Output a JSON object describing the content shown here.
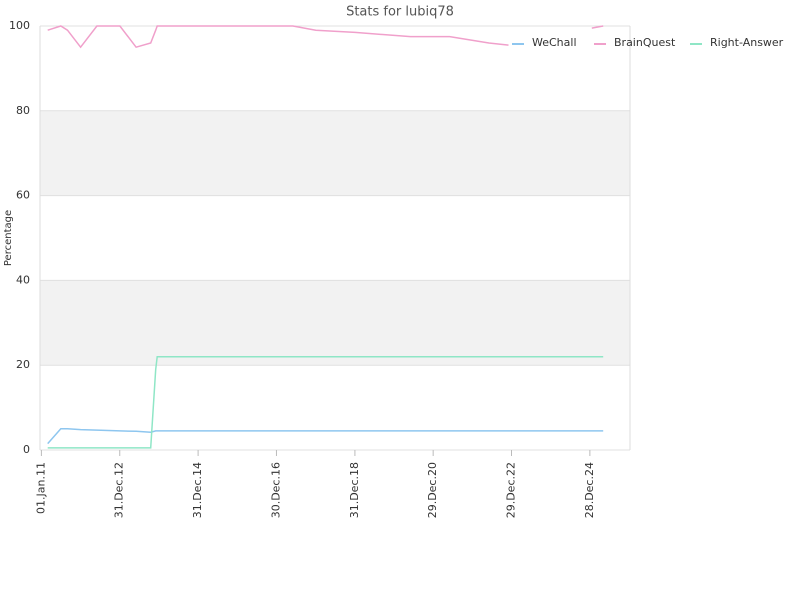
{
  "chart_data": {
    "type": "line",
    "title": "Stats for lubiq78",
    "y_label": "Percentage",
    "x": [
      "2011-03-01",
      "2011-07-01",
      "2011-09-01",
      "2012-01-01",
      "2012-06-01",
      "2013-01-01",
      "2013-06-01",
      "2013-10-15",
      "2013-12-01",
      "2013-12-15",
      "2014-06-01",
      "2016-01-01",
      "2017-06-01",
      "2018-01-01",
      "2019-01-01",
      "2020-06-01",
      "2021-06-01",
      "2022-06-01",
      "2022-12-01",
      "2024-12-01",
      "2025-01-15",
      "2025-05-01"
    ],
    "series": [
      {
        "name": "WeChall",
        "color": "#8ec6ef",
        "values": [
          1.5,
          5,
          5,
          4.8,
          4.7,
          4.5,
          4.4,
          4.2,
          4.5,
          4.5,
          4.5,
          4.5,
          4.5,
          4.5,
          4.5,
          4.5,
          4.5,
          4.5,
          4.5,
          4.5,
          4.5,
          4.5
        ]
      },
      {
        "name": "BrainQuest",
        "color": "#f0a0cb",
        "values": [
          99,
          100,
          99,
          95,
          100,
          100,
          95,
          96,
          99,
          100,
          100,
          100,
          100,
          99,
          98.5,
          97.5,
          97.5,
          96,
          95.5,
          null,
          99.5,
          100
        ]
      },
      {
        "name": "Right-Answer",
        "color": "#8fe6c6",
        "values": [
          0.5,
          0.5,
          0.5,
          0.5,
          0.5,
          0.5,
          0.5,
          0.5,
          19,
          22,
          22,
          22,
          22,
          22,
          22,
          22,
          22,
          22,
          22,
          22,
          22,
          22
        ]
      }
    ],
    "xlim": [
      "2010-12-19",
      "2026-01-06"
    ],
    "xticks": [
      {
        "value": "2011-01-01",
        "label": "01.Jan.11"
      },
      {
        "value": "2012-12-31",
        "label": "31.Dec.12"
      },
      {
        "value": "2014-12-31",
        "label": "31.Dec.14"
      },
      {
        "value": "2016-12-30",
        "label": "30.Dec.16"
      },
      {
        "value": "2018-12-31",
        "label": "31.Dec.18"
      },
      {
        "value": "2020-12-29",
        "label": "29.Dec.20"
      },
      {
        "value": "2022-12-29",
        "label": "29.Dec.22"
      },
      {
        "value": "2024-12-28",
        "label": "28.Dec.24"
      }
    ],
    "ylim": [
      0,
      100
    ],
    "yticks": [
      0,
      20,
      40,
      60,
      80,
      100
    ],
    "grid": true,
    "legend": "top-right"
  }
}
